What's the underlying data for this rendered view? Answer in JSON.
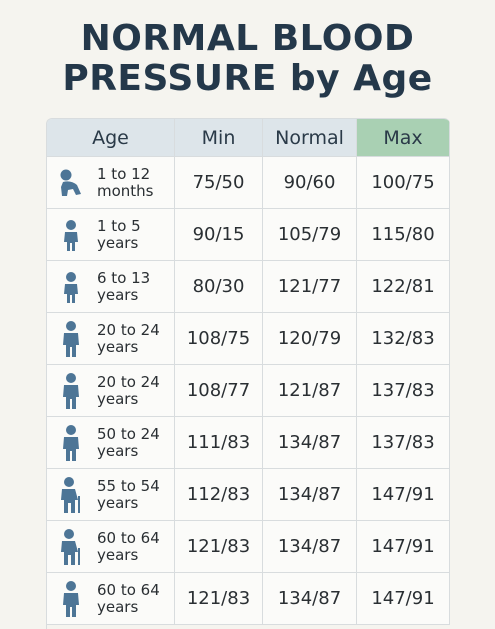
{
  "header": {
    "title_lines": [
      "NORMAL BLOOD",
      "PRESSURE by Age"
    ]
  },
  "table": {
    "columns": [
      "Age",
      "Min",
      "Normal",
      "Max"
    ],
    "rows": [
      [
        [
          "1 to 12",
          "months"
        ],
        "75/50",
        "90/60",
        "100/75"
      ],
      [
        [
          "1 to 5",
          "years"
        ],
        "90/15",
        "105/79",
        "115/80"
      ],
      [
        [
          "6 to 13",
          "years"
        ],
        "80/30",
        "121/77",
        "122/81"
      ],
      [
        [
          "20 to 24",
          "years"
        ],
        "108/75",
        "120/79",
        "132/83"
      ],
      [
        [
          "20 to 24",
          "years"
        ],
        "108/77",
        "121/87",
        "137/83"
      ],
      [
        [
          "50 to 24",
          "years"
        ],
        "111/83",
        "134/87",
        "137/83"
      ],
      [
        [
          "55 to 54",
          "years"
        ],
        "112/83",
        "134/87",
        "147/91"
      ],
      [
        [
          "60 to 64",
          "years"
        ],
        "121/83",
        "134/87",
        "147/91"
      ],
      [
        [
          "60 to 64",
          "years"
        ],
        "121/83",
        "134/87",
        "147/91"
      ]
    ]
  }
}
